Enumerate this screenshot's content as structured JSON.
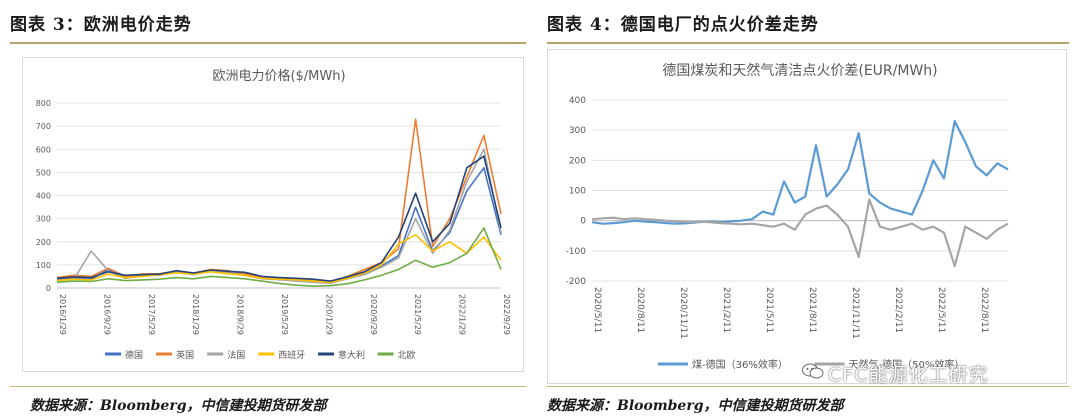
{
  "left_panel": {
    "heading": "图表 3：欧洲电价走势",
    "source": "数据来源：Bloomberg，中信建投期货研发部"
  },
  "right_panel": {
    "heading": "图表 4：德国电厂的点火价差走势",
    "source": "数据来源：Bloomberg，中信建投期货研发部"
  },
  "watermark": "CFC能源化工研究",
  "colors": {
    "rule": "#b9a56a",
    "germany": "#4472c4",
    "uk": "#ed7d31",
    "france": "#a5a5a5",
    "spain": "#ffc000",
    "italy": "#264478",
    "nordic": "#70ad47",
    "spread_gas": "#5b9bd5",
    "spread_coal": "#a5a5a5"
  },
  "chart_data": [
    {
      "type": "line",
      "title": "欧洲电力价格($/MWh)",
      "xlabel": "",
      "ylabel": "",
      "ylim": [
        0,
        800
      ],
      "yticks": [
        0,
        100,
        200,
        300,
        400,
        500,
        600,
        700,
        800
      ],
      "x_ticks": [
        "2016/1/29",
        "2016/9/29",
        "2017/5/29",
        "2018/1/29",
        "2018/9/29",
        "2019/5/29",
        "2020/1/29",
        "2020/9/29",
        "2021/5/29",
        "2022/1/29",
        "2022/9/29"
      ],
      "grid": true,
      "legend_position": "bottom",
      "series": [
        {
          "name": "德国",
          "color": "#4472c4",
          "values": [
            35,
            42,
            38,
            80,
            45,
            55,
            58,
            70,
            60,
            75,
            70,
            65,
            45,
            40,
            36,
            30,
            25,
            45,
            60,
            95,
            140,
            350,
            160,
            240,
            420,
            520,
            230
          ]
        },
        {
          "name": "英国",
          "color": "#ed7d31",
          "values": [
            45,
            55,
            50,
            85,
            50,
            60,
            62,
            72,
            65,
            80,
            75,
            60,
            48,
            42,
            40,
            32,
            28,
            50,
            80,
            110,
            170,
            730,
            180,
            300,
            480,
            660,
            320
          ]
        },
        {
          "name": "法国",
          "color": "#a5a5a5",
          "values": [
            33,
            40,
            160,
            75,
            42,
            52,
            55,
            68,
            58,
            72,
            68,
            55,
            40,
            36,
            30,
            25,
            20,
            40,
            58,
            90,
            130,
            300,
            150,
            250,
            460,
            600,
            240
          ]
        },
        {
          "name": "西班牙",
          "color": "#ffc000",
          "values": [
            32,
            38,
            35,
            60,
            45,
            50,
            58,
            65,
            60,
            70,
            62,
            55,
            42,
            38,
            36,
            30,
            24,
            42,
            65,
            100,
            190,
            230,
            160,
            200,
            150,
            220,
            120
          ]
        },
        {
          "name": "意大利",
          "color": "#264478",
          "values": [
            42,
            48,
            45,
            70,
            55,
            58,
            60,
            75,
            65,
            78,
            72,
            68,
            50,
            45,
            42,
            38,
            30,
            48,
            70,
            110,
            220,
            410,
            200,
            280,
            520,
            570,
            260
          ]
        },
        {
          "name": "北欧",
          "color": "#70ad47",
          "values": [
            25,
            30,
            28,
            40,
            32,
            35,
            38,
            45,
            40,
            50,
            45,
            40,
            30,
            20,
            12,
            8,
            10,
            18,
            35,
            55,
            80,
            120,
            90,
            110,
            150,
            260,
            80
          ]
        }
      ]
    },
    {
      "type": "line",
      "title": "德国煤炭和天然气清洁点火价差(EUR/MWh)",
      "xlabel": "",
      "ylabel": "",
      "ylim": [
        -200,
        400
      ],
      "yticks": [
        -200,
        -100,
        0,
        100,
        200,
        300,
        400
      ],
      "x_ticks": [
        "2020/5/11",
        "2020/8/11",
        "2020/11/11",
        "2021/2/11",
        "2021/5/11",
        "2021/8/11",
        "2021/11/11",
        "2022/2/11",
        "2022/5/11",
        "2022/8/11"
      ],
      "grid": true,
      "legend_position": "bottom",
      "series": [
        {
          "name": "煤-德国（36%效率）",
          "color": "#5b9bd5",
          "values": [
            -5,
            -10,
            -8,
            -5,
            0,
            -3,
            -5,
            -8,
            -10,
            -8,
            -5,
            -3,
            -5,
            -2,
            0,
            5,
            30,
            20,
            130,
            60,
            80,
            250,
            80,
            120,
            170,
            290,
            90,
            60,
            40,
            30,
            20,
            100,
            200,
            140,
            330,
            260,
            180,
            150,
            190,
            170
          ]
        },
        {
          "name": "天然气-德国（50%效率）",
          "color": "#a5a5a5",
          "values": [
            5,
            8,
            10,
            5,
            8,
            5,
            3,
            0,
            -2,
            -5,
            -3,
            -5,
            -8,
            -10,
            -12,
            -10,
            -15,
            -20,
            -10,
            -30,
            20,
            40,
            50,
            20,
            -20,
            -120,
            70,
            -20,
            -30,
            -20,
            -10,
            -30,
            -20,
            -40,
            -150,
            -20,
            -40,
            -60,
            -30,
            -10
          ]
        }
      ]
    }
  ]
}
